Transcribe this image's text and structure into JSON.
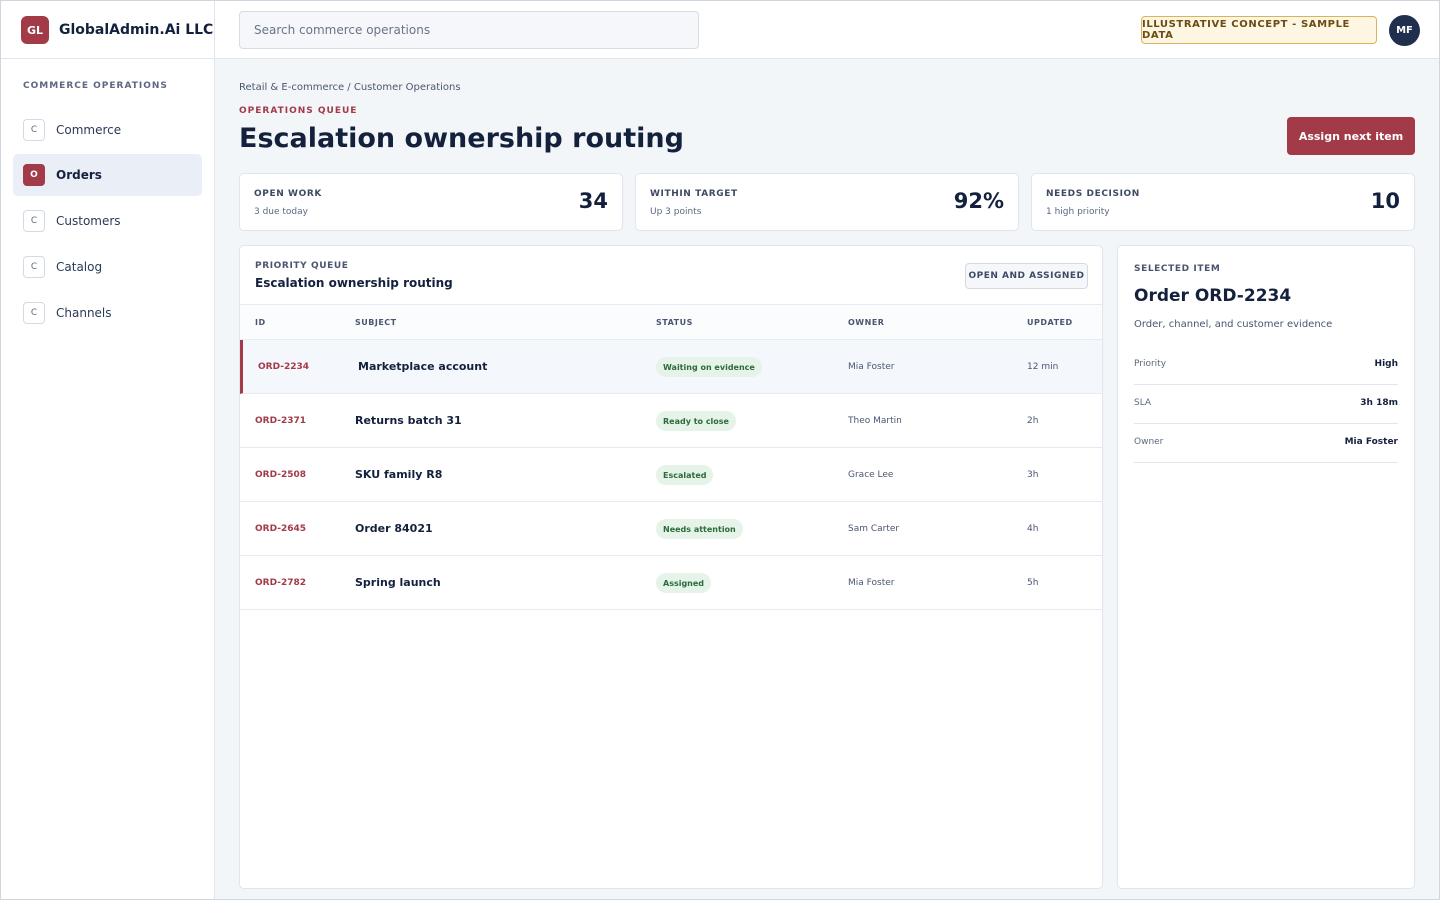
{
  "brand": {
    "logo": "GL",
    "name": "GlobalAdmin.Ai LLC"
  },
  "search": {
    "placeholder": "Search commerce operations",
    "value": ""
  },
  "badge": "ILLUSTRATIVE CONCEPT - SAMPLE DATA",
  "user": {
    "initials": "MF"
  },
  "sidebar": {
    "heading": "COMMERCE OPERATIONS",
    "items": [
      {
        "chip": "C",
        "label": "Commerce",
        "active": false
      },
      {
        "chip": "O",
        "label": "Orders",
        "active": true
      },
      {
        "chip": "C",
        "label": "Customers",
        "active": false
      },
      {
        "chip": "C",
        "label": "Catalog",
        "active": false
      },
      {
        "chip": "C",
        "label": "Channels",
        "active": false
      }
    ]
  },
  "breadcrumb": "Retail & E-commerce / Customer Operations",
  "eyebrow": "OPERATIONS QUEUE",
  "title": "Escalation ownership routing",
  "assign_button": "Assign next item",
  "stats": [
    {
      "label": "OPEN WORK",
      "sub": "3 due today",
      "value": "34"
    },
    {
      "label": "WITHIN TARGET",
      "sub": "Up 3 points",
      "value": "92%"
    },
    {
      "label": "NEEDS DECISION",
      "sub": "1 high priority",
      "value": "10"
    }
  ],
  "queue": {
    "eyebrow": "PRIORITY QUEUE",
    "title": "Escalation ownership routing",
    "filter": "OPEN AND ASSIGNED",
    "columns": [
      "ID",
      "SUBJECT",
      "STATUS",
      "OWNER",
      "UPDATED"
    ],
    "rows": [
      {
        "id": "ORD-2234",
        "subject": "Marketplace account",
        "status": "Waiting on evidence",
        "owner": "Mia Foster",
        "updated": "12 min",
        "selected": true
      },
      {
        "id": "ORD-2371",
        "subject": "Returns batch 31",
        "status": "Ready to close",
        "owner": "Theo Martin",
        "updated": "2h",
        "selected": false
      },
      {
        "id": "ORD-2508",
        "subject": "SKU family R8",
        "status": "Escalated",
        "owner": "Grace Lee",
        "updated": "3h",
        "selected": false
      },
      {
        "id": "ORD-2645",
        "subject": "Order 84021",
        "status": "Needs attention",
        "owner": "Sam Carter",
        "updated": "4h",
        "selected": false
      },
      {
        "id": "ORD-2782",
        "subject": "Spring launch",
        "status": "Assigned",
        "owner": "Mia Foster",
        "updated": "5h",
        "selected": false
      }
    ]
  },
  "detail": {
    "eyebrow": "SELECTED ITEM",
    "title": "Order ORD-2234",
    "subtitle": "Order, channel, and customer evidence",
    "fields": [
      {
        "key": "Priority",
        "value": "High"
      },
      {
        "key": "SLA",
        "value": "3h 18m"
      },
      {
        "key": "Owner",
        "value": "Mia Foster"
      }
    ]
  },
  "colors": {
    "accent": "#a23a47",
    "navy": "#14213d",
    "status_bg": "#e6f3e8",
    "status_text": "#2c6b3a"
  }
}
